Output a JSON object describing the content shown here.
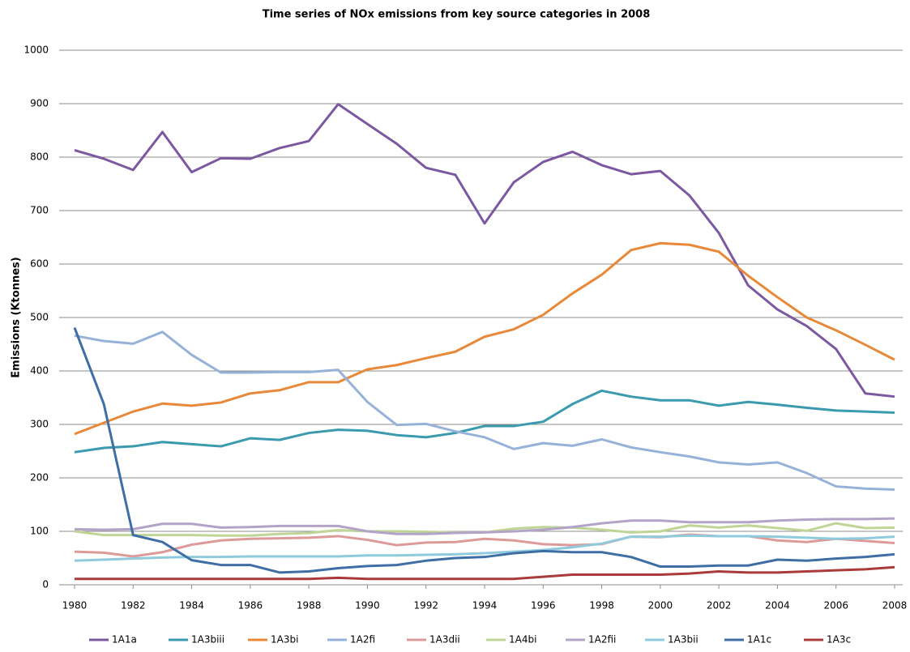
{
  "chart_data": {
    "type": "line",
    "title": "Time series of NOx emissions from key source categories in 2008",
    "ylabel": "Emissions (Ktonnes)",
    "x": [
      1980,
      1981,
      1982,
      1983,
      1984,
      1985,
      1986,
      1987,
      1988,
      1989,
      1990,
      1991,
      1992,
      1993,
      1994,
      1995,
      1996,
      1997,
      1998,
      1999,
      2000,
      2001,
      2002,
      2003,
      2004,
      2005,
      2006,
      2007,
      2008
    ],
    "xlim": [
      1980,
      2008
    ],
    "xticks": [
      1980,
      1982,
      1984,
      1986,
      1988,
      1990,
      1992,
      1994,
      1996,
      1998,
      2000,
      2002,
      2004,
      2006,
      2008
    ],
    "ylim": [
      0,
      1000
    ],
    "yticks": [
      0,
      100,
      200,
      300,
      400,
      500,
      600,
      700,
      800,
      900,
      1000
    ],
    "grid": true,
    "legend": "bottom",
    "series": [
      {
        "name": "1A1a",
        "color": "#7b58a0",
        "values": [
          813,
          797,
          776,
          847,
          772,
          798,
          797,
          817,
          830,
          899,
          862,
          825,
          780,
          767,
          676,
          753,
          791,
          810,
          785,
          768,
          774,
          728,
          658,
          560,
          515,
          484,
          441,
          358,
          352
        ]
      },
      {
        "name": "1A3biii",
        "color": "#3b9aad",
        "values": [
          248,
          256,
          259,
          267,
          263,
          259,
          274,
          271,
          284,
          290,
          288,
          280,
          276,
          284,
          297,
          297,
          305,
          338,
          363,
          352,
          345,
          345,
          335,
          342,
          337,
          331,
          326,
          324,
          322
        ]
      },
      {
        "name": "1A3bi",
        "color": "#e8893a",
        "values": [
          282,
          303,
          324,
          339,
          335,
          341,
          358,
          364,
          379,
          379,
          403,
          411,
          424,
          436,
          464,
          478,
          505,
          545,
          580,
          626,
          639,
          636,
          623,
          578,
          538,
          500,
          476,
          449,
          421
        ]
      },
      {
        "name": "1A2fi",
        "color": "#97b2d8",
        "values": [
          466,
          456,
          451,
          473,
          430,
          397,
          397,
          398,
          398,
          402,
          342,
          299,
          301,
          287,
          276,
          254,
          265,
          260,
          272,
          257,
          248,
          240,
          229,
          225,
          229,
          209,
          184,
          180,
          178
        ]
      },
      {
        "name": "1A3dii",
        "color": "#dc9b99",
        "values": [
          62,
          60,
          53,
          61,
          75,
          83,
          86,
          87,
          88,
          91,
          84,
          74,
          79,
          80,
          86,
          83,
          76,
          74,
          76,
          90,
          89,
          94,
          91,
          91,
          83,
          80,
          86,
          82,
          78
        ]
      },
      {
        "name": "1A4bi",
        "color": "#bed595",
        "values": [
          100,
          93,
          93,
          93,
          93,
          92,
          92,
          95,
          97,
          102,
          100,
          100,
          99,
          98,
          98,
          105,
          108,
          107,
          103,
          98,
          100,
          111,
          107,
          111,
          106,
          101,
          115,
          106,
          107
        ]
      },
      {
        "name": "1A2fii",
        "color": "#b3a3c9",
        "values": [
          104,
          103,
          104,
          114,
          114,
          107,
          108,
          110,
          110,
          110,
          100,
          95,
          95,
          97,
          98,
          100,
          103,
          108,
          115,
          120,
          120,
          117,
          117,
          117,
          120,
          122,
          123,
          123,
          124
        ]
      },
      {
        "name": "1A3bii",
        "color": "#8fcbdc",
        "values": [
          45,
          47,
          49,
          51,
          52,
          52,
          53,
          53,
          53,
          53,
          55,
          55,
          56,
          57,
          59,
          62,
          65,
          70,
          77,
          90,
          90,
          92,
          91,
          91,
          90,
          88,
          86,
          87,
          90
        ]
      },
      {
        "name": "1A1c",
        "color": "#3f6ea5",
        "values": [
          481,
          338,
          93,
          80,
          46,
          37,
          37,
          23,
          25,
          31,
          35,
          37,
          45,
          50,
          52,
          59,
          63,
          61,
          61,
          52,
          34,
          34,
          36,
          36,
          47,
          45,
          49,
          52,
          57
        ]
      },
      {
        "name": "1A3c",
        "color": "#a93c3a",
        "values": [
          11,
          11,
          11,
          11,
          11,
          11,
          11,
          11,
          11,
          13,
          11,
          11,
          11,
          11,
          11,
          11,
          15,
          19,
          19,
          19,
          19,
          21,
          25,
          23,
          23,
          25,
          27,
          29,
          33
        ]
      }
    ]
  }
}
